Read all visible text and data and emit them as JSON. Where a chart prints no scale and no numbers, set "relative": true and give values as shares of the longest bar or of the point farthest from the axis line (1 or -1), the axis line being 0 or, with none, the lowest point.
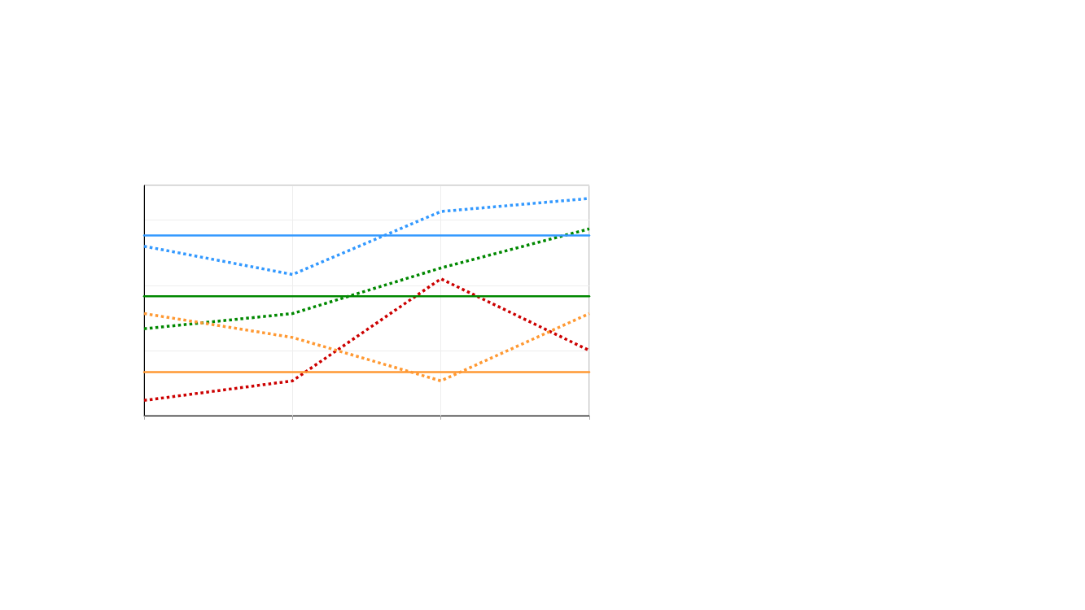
{
  "chart_data": {
    "type": "line",
    "relative": true,
    "categories": [
      null,
      null,
      null,
      null
    ],
    "grid": true,
    "marker": "none",
    "series": [
      {
        "color": "#3399ff",
        "line_style": "dotted",
        "values": [
          0.78,
          0.65,
          0.94,
          1
        ]
      },
      {
        "color": "#008800",
        "line_style": "dotted",
        "values": [
          0.4,
          0.47,
          0.68,
          0.86
        ]
      },
      {
        "color": "#cc0000",
        "line_style": "dotted",
        "values": [
          0.07,
          0.16,
          0.63,
          0.3
        ]
      },
      {
        "color": "#ff9933",
        "line_style": "dotted",
        "values": [
          0.47,
          0.36,
          0.16,
          0.47
        ]
      },
      {
        "color": "#3399ff",
        "line_style": "solid",
        "values": [
          0.83,
          0.83,
          0.83,
          0.83
        ]
      },
      {
        "color": "#008800",
        "line_style": "solid",
        "values": [
          0.55,
          0.55,
          0.55,
          0.55
        ]
      },
      {
        "color": "#ff9933",
        "line_style": "solid",
        "values": [
          0.2,
          0.2,
          0.2,
          0.2
        ]
      }
    ]
  }
}
